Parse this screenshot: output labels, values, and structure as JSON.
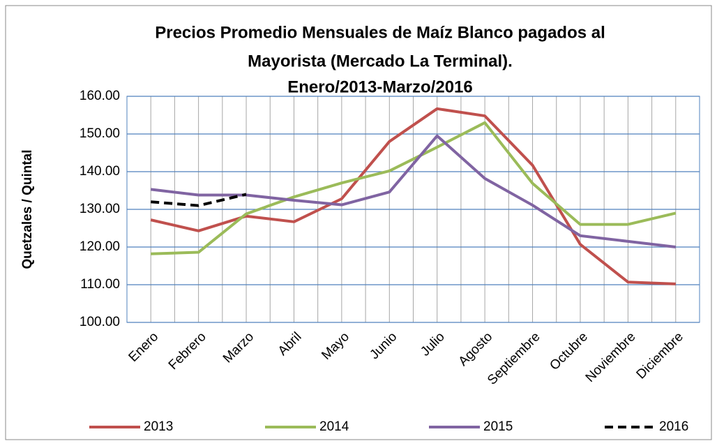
{
  "chart_data": {
    "type": "line",
    "title": [
      "Precios Promedio Mensuales de Maíz Blanco pagados al",
      "Mayorista (Mercado La Terminal).",
      "Enero/2013-Marzo/2016"
    ],
    "y_label": "Quetzales / Quintal",
    "categories": [
      "Enero",
      "Febrero",
      "Marzo",
      "Abril",
      "Mayo",
      "Junio",
      "Julio",
      "Agosto",
      "Septiembre",
      "Octubre",
      "Noviembre",
      "Diciembre"
    ],
    "series": [
      {
        "name": "2013",
        "color": "#c0504d",
        "values": [
          127.2,
          124.3,
          128.2,
          126.7,
          132.8,
          148,
          156.7,
          154.8,
          141.7,
          120.7,
          110.7,
          110.2
        ]
      },
      {
        "name": "2014",
        "color": "#9bbb59",
        "values": [
          118.2,
          118.6,
          128.8,
          133.3,
          137,
          140.2,
          146.5,
          153,
          136.9,
          126,
          126,
          129
        ]
      },
      {
        "name": "2015",
        "color": "#8064a2",
        "values": [
          135.3,
          133.8,
          133.8,
          132.4,
          131.2,
          134.6,
          149.5,
          138.2,
          131.1,
          123,
          121.5,
          120
        ]
      },
      {
        "name": "2016",
        "color": "#000000",
        "dashed": true,
        "values": [
          132,
          131,
          134,
          null,
          null,
          null,
          null,
          null,
          null,
          null,
          null,
          null
        ]
      }
    ],
    "ylim": [
      100,
      160
    ],
    "yticks": [
      {
        "value": 100,
        "label": "100.00"
      },
      {
        "value": 110,
        "label": "110.00"
      },
      {
        "value": 120,
        "label": "120.00"
      },
      {
        "value": 130,
        "label": "130.00"
      },
      {
        "value": 140,
        "label": "140.00"
      },
      {
        "value": 150,
        "label": "150.00"
      },
      {
        "value": 160,
        "label": "160.00"
      }
    ],
    "grid": true,
    "legend": "bottom"
  }
}
